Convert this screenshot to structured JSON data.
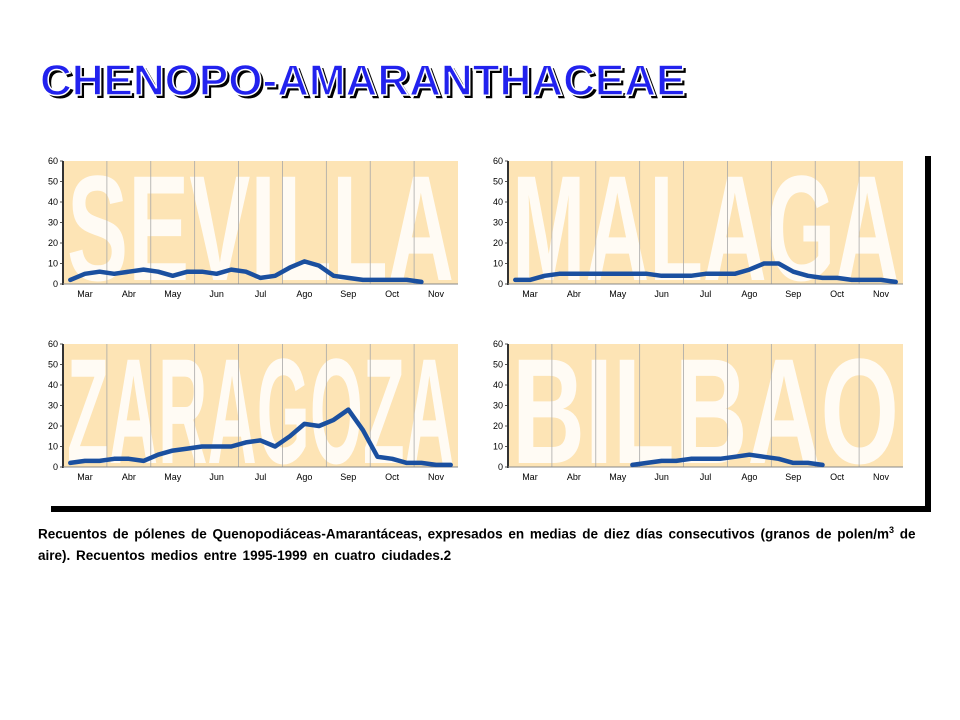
{
  "slide_title": "CHENOPO-AMARANTHACEAE",
  "caption": {
    "before": "Recuentos de pólenes de Quenopodiáceas-Amarantáceas, expresados en medias de diez días consecutivos (granos de polen/m",
    "sup": "3",
    "after": " de aire). Recuentos medios entre 1995-1999 en cuatro ciudades.2"
  },
  "chart_data": [
    {
      "type": "line",
      "title": "SEVILLA",
      "categories": [
        null,
        "Mar",
        null,
        null,
        "Abr",
        null,
        null,
        "May",
        null,
        null,
        "Jun",
        null,
        null,
        "Jul",
        null,
        null,
        "Ago",
        null,
        null,
        "Sep",
        null,
        null,
        "Oct",
        null,
        null,
        "Nov",
        null
      ],
      "series": [
        {
          "color": "#1a4f9f",
          "values": [
            2,
            5,
            6,
            5,
            6,
            7,
            6,
            4,
            6,
            6,
            5,
            7,
            6,
            3,
            4,
            8,
            11,
            9,
            4,
            3,
            2,
            2,
            2,
            2,
            1,
            null,
            null
          ]
        }
      ],
      "ylim": [
        0,
        60
      ],
      "yticks": [
        0,
        10,
        20,
        30,
        40,
        50,
        60
      ],
      "grid": true
    },
    {
      "type": "line",
      "title": "MALAGA",
      "categories": [
        null,
        "Mar",
        null,
        null,
        "Abr",
        null,
        null,
        "May",
        null,
        null,
        "Jun",
        null,
        null,
        "Jul",
        null,
        null,
        "Ago",
        null,
        null,
        "Sep",
        null,
        null,
        "Oct",
        null,
        null,
        "Nov",
        null
      ],
      "series": [
        {
          "color": "#1a4f9f",
          "values": [
            2,
            2,
            4,
            5,
            5,
            5,
            5,
            5,
            5,
            5,
            4,
            4,
            4,
            5,
            5,
            5,
            7,
            10,
            10,
            6,
            4,
            3,
            3,
            2,
            2,
            2,
            1
          ]
        }
      ],
      "ylim": [
        0,
        60
      ],
      "yticks": [
        0,
        10,
        20,
        30,
        40,
        50,
        60
      ],
      "grid": true
    },
    {
      "type": "line",
      "title": "ZARAGOZA",
      "categories": [
        null,
        "Mar",
        null,
        null,
        "Abr",
        null,
        null,
        "May",
        null,
        null,
        "Jun",
        null,
        null,
        "Jul",
        null,
        null,
        "Ago",
        null,
        null,
        "Sep",
        null,
        null,
        "Oct",
        null,
        null,
        "Nov",
        null
      ],
      "series": [
        {
          "color": "#1a4f9f",
          "values": [
            2,
            3,
            3,
            4,
            4,
            3,
            6,
            8,
            9,
            10,
            10,
            10,
            12,
            13,
            10,
            15,
            21,
            20,
            23,
            28,
            18,
            5,
            4,
            2,
            2,
            1,
            1
          ]
        }
      ],
      "ylim": [
        0,
        60
      ],
      "yticks": [
        0,
        10,
        20,
        30,
        40,
        50,
        60
      ],
      "grid": true
    },
    {
      "type": "line",
      "title": "BILBAO",
      "categories": [
        null,
        "Mar",
        null,
        null,
        "Abr",
        null,
        null,
        "May",
        null,
        null,
        "Jun",
        null,
        null,
        "Jul",
        null,
        null,
        "Ago",
        null,
        null,
        "Sep",
        null,
        null,
        "Oct",
        null,
        null,
        "Nov",
        null
      ],
      "series": [
        {
          "color": "#1a4f9f",
          "values": [
            null,
            null,
            null,
            null,
            null,
            null,
            null,
            null,
            1,
            2,
            3,
            3,
            4,
            4,
            4,
            5,
            6,
            5,
            4,
            2,
            2,
            1,
            null,
            null,
            null,
            null,
            null
          ]
        }
      ],
      "ylim": [
        0,
        60
      ],
      "yticks": [
        0,
        10,
        20,
        30,
        40,
        50,
        60
      ],
      "grid": true
    }
  ]
}
